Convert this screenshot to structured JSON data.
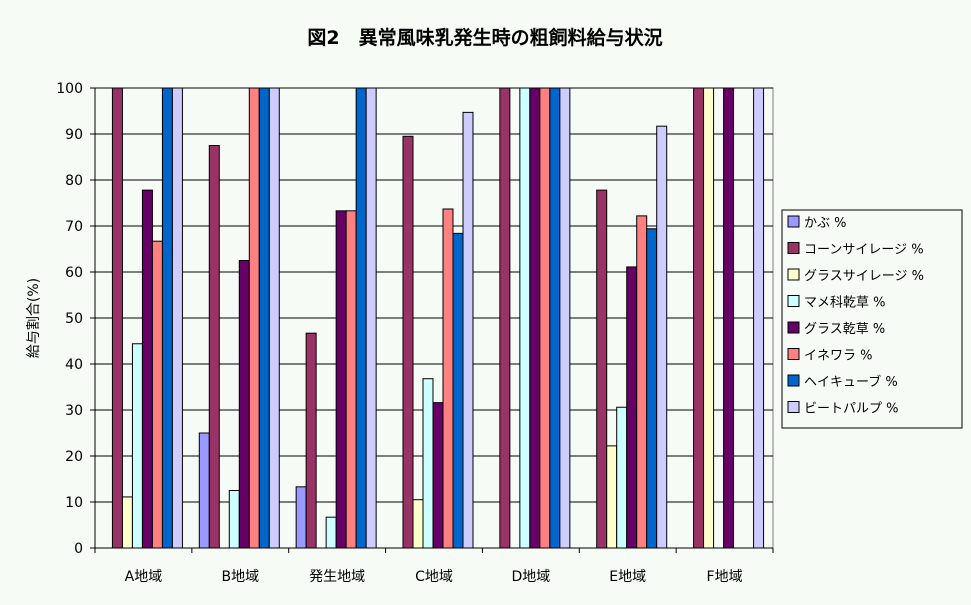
{
  "chart_data": {
    "type": "bar",
    "title": "図2　異常風味乳発生時の粗飼料給与状況",
    "xlabel": "",
    "ylabel": "給与割合(%)",
    "ylim": [
      0,
      100
    ],
    "yticks": [
      0,
      10,
      20,
      30,
      40,
      50,
      60,
      70,
      80,
      90,
      100
    ],
    "grid": true,
    "legend_position": "right",
    "categories": [
      "A地域",
      "B地域",
      "発生地域",
      "C地域",
      "D地域",
      "E地域",
      "F地域"
    ],
    "series": [
      {
        "name": "かぶ %",
        "color": "#9999ff",
        "values": [
          0,
          25,
          13.3,
          0,
          0,
          0,
          0
        ]
      },
      {
        "name": "コーンサイレージ %",
        "color": "#993366",
        "values": [
          100,
          87.5,
          46.7,
          89.5,
          100,
          77.8,
          100
        ]
      },
      {
        "name": "グラスサイレージ %",
        "color": "#ffffcc",
        "values": [
          11.1,
          0,
          0,
          10.5,
          0,
          22.2,
          100
        ]
      },
      {
        "name": "マメ科乾草 %",
        "color": "#ccffff",
        "values": [
          44.4,
          12.5,
          6.7,
          36.8,
          100,
          30.6,
          0
        ]
      },
      {
        "name": "グラス乾草 %",
        "color": "#660066",
        "values": [
          77.8,
          62.5,
          73.3,
          31.6,
          100,
          61.1,
          100
        ]
      },
      {
        "name": "イネワラ %",
        "color": "#ff8080",
        "values": [
          66.7,
          100,
          73.3,
          73.7,
          100,
          72.2,
          0
        ]
      },
      {
        "name": "ヘイキューブ %",
        "color": "#0066cc",
        "values": [
          100,
          100,
          100,
          68.4,
          100,
          69.4,
          0
        ]
      },
      {
        "name": "ビートパルプ %",
        "color": "#ccccff",
        "values": [
          100,
          100,
          100,
          94.7,
          100,
          91.7,
          100
        ]
      }
    ]
  }
}
